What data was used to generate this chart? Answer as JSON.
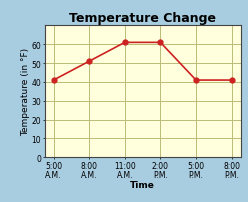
{
  "title": "Temperature Change",
  "x_labels": [
    "5:00\nA.M.",
    "8:00\nA.M.",
    "11:00\nA.M.",
    "2:00\nP.M.",
    "5:00\nP.M.",
    "8:00\nP.M."
  ],
  "x_values": [
    0,
    1,
    2,
    3,
    4,
    5
  ],
  "y_values": [
    41,
    51,
    61,
    61,
    41,
    41
  ],
  "xlabel": "Time",
  "ylabel": "Temperature (in °F)",
  "ylim": [
    0,
    70
  ],
  "yticks": [
    0,
    10,
    20,
    30,
    40,
    50,
    60
  ],
  "line_color": "#cc2222",
  "marker_color": "#cc2222",
  "bg_outer": "#a8cce0",
  "bg_plot": "#ffffdd",
  "grid_color": "#bbbb77",
  "title_fontsize": 9,
  "axis_label_fontsize": 6.5,
  "tick_fontsize": 5.5
}
